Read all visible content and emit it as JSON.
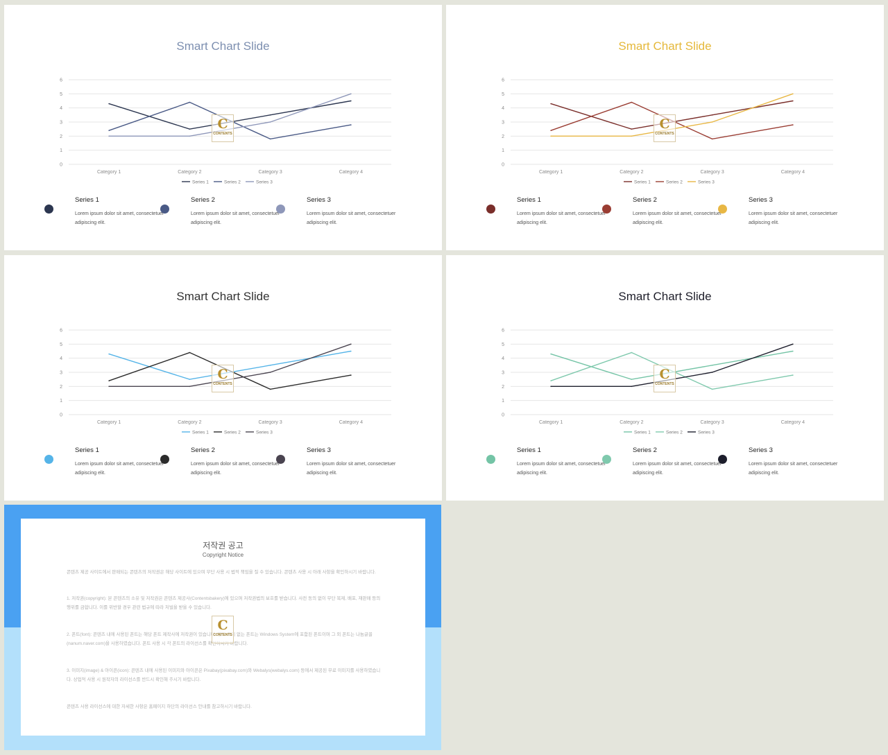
{
  "slides": [
    {
      "title": "Smart Chart Slide",
      "title_color": "#7d8fb0",
      "colors": [
        "#2c3650",
        "#4a5a86",
        "#8e97b9"
      ],
      "series": [
        {
          "name": "Series 1",
          "desc_line1": "Lorem ipsum dolor sit amet, consectetuer",
          "desc_line2": "adipiscing elit."
        },
        {
          "name": "Series 2",
          "desc_line1": "Lorem ipsum dolor sit amet, consectetuer",
          "desc_line2": "adipiscing elit."
        },
        {
          "name": "Series 3",
          "desc_line1": "Lorem ipsum dolor sit amet, consectetuer",
          "desc_line2": "adipiscing elit."
        }
      ]
    },
    {
      "title": "Smart Chart Slide",
      "title_color": "#e5b83a",
      "colors": [
        "#7a2e2a",
        "#9a3d33",
        "#e8b744"
      ],
      "series": [
        {
          "name": "Series 1",
          "desc_line1": "Lorem ipsum dolor sit amet, consectetuer",
          "desc_line2": "adipiscing elit."
        },
        {
          "name": "Series 2",
          "desc_line1": "Lorem ipsum dolor sit amet, consectetuer",
          "desc_line2": "adipiscing elit."
        },
        {
          "name": "Series 3",
          "desc_line1": "Lorem ipsum dolor sit amet, consectetuer",
          "desc_line2": "adipiscing elit."
        }
      ]
    },
    {
      "title": "Smart Chart Slide",
      "title_color": "#333333",
      "colors": [
        "#55b4e8",
        "#2b2b2b",
        "#4a4450"
      ],
      "series": [
        {
          "name": "Series 1",
          "desc_line1": "Lorem ipsum dolor sit amet, consectetuer",
          "desc_line2": "adipiscing elit."
        },
        {
          "name": "Series 2",
          "desc_line1": "Lorem ipsum dolor sit amet, consectetuer",
          "desc_line2": "adipiscing elit."
        },
        {
          "name": "Series 3",
          "desc_line1": "Lorem ipsum dolor sit amet, consectetuer",
          "desc_line2": "adipiscing elit."
        }
      ]
    },
    {
      "title": "Smart Chart Slide",
      "title_color": "#1e1e2a",
      "colors": [
        "#74c4a6",
        "#7fc9ad",
        "#1d1e2c"
      ],
      "series": [
        {
          "name": "Series 1",
          "desc_line1": "Lorem ipsum dolor sit amet, consectetuer",
          "desc_line2": "adipiscing elit."
        },
        {
          "name": "Series 2",
          "desc_line1": "Lorem ipsum dolor sit amet, consectetuer",
          "desc_line2": "adipiscing elit."
        },
        {
          "name": "Series 3",
          "desc_line1": "Lorem ipsum dolor sit amet, consectetuer",
          "desc_line2": "adipiscing elit."
        }
      ]
    }
  ],
  "chart_data": {
    "type": "line",
    "categories": [
      "Category 1",
      "Category 2",
      "Category 3",
      "Category 4"
    ],
    "y_ticks": [
      "0",
      "1",
      "2",
      "3",
      "4",
      "5",
      "6"
    ],
    "ylim": [
      0,
      6
    ],
    "grid": true,
    "legend_position": "bottom",
    "series": [
      {
        "name": "Series 1",
        "values": [
          4.3,
          2.5,
          3.5,
          4.5
        ]
      },
      {
        "name": "Series 2",
        "values": [
          2.4,
          4.4,
          1.8,
          2.8
        ]
      },
      {
        "name": "Series 3",
        "values": [
          2,
          2,
          3,
          5
        ]
      }
    ]
  },
  "logo": {
    "letter": "C",
    "text": "CONTENTS"
  },
  "notice": {
    "colors": {
      "top": "#4aa1f2",
      "bottom": "#b3e0fb"
    },
    "title": "저작권 공고",
    "subtitle": "Copyright Notice",
    "paragraphs": [
      "콘텐츠 제공 사이트에서 판매되는 콘텐츠의 저작권은 해당 사이트에 있으며 무단 사용 시 법적 책임을 질 수 있습니다. 콘텐츠 사용 시 아래 사항을 확인하시기 바랍니다.",
      "1. 저작권(copyright): 본 콘텐츠의 소유 및 저작권은 콘텐츠 제공사(Contentsbakery)에 있으며 저작권법의 보호를 받습니다. 사전 동의 없이 무단 복제, 배포, 재판매 등의 행위를 금합니다. 이를 위반할 경우 관련 법규에 따라 처벌을 받을 수 있습니다.",
      "2. 폰트(font): 콘텐츠 내에 사용된 폰트는 해당 폰트 제작사에 저작권이 있습니다. 별도 표기 없는 폰트는 Windows System에 포함된 폰트이며 그 외 폰트는 나눔글꼴(nanum.naver.com)을 사용하였습니다. 폰트 사용 시 각 폰트의 라이선스를 확인하시기 바랍니다.",
      "3. 이미지(image) & 아이콘(icon): 콘텐츠 내에 사용된 이미지와 아이콘은 Pixabay(pixabay.com)와 Webalys(webalys.com) 등에서 제공된 무료 이미지를 사용하였습니다. 상업적 사용 시 원작자의 라이선스를 반드시 확인해 주시기 바랍니다.",
      "콘텐츠 사용 라이선스에 대한 자세한 사항은 홈페이지 하단의 라이선스 안내를 참고하시기 바랍니다."
    ]
  }
}
